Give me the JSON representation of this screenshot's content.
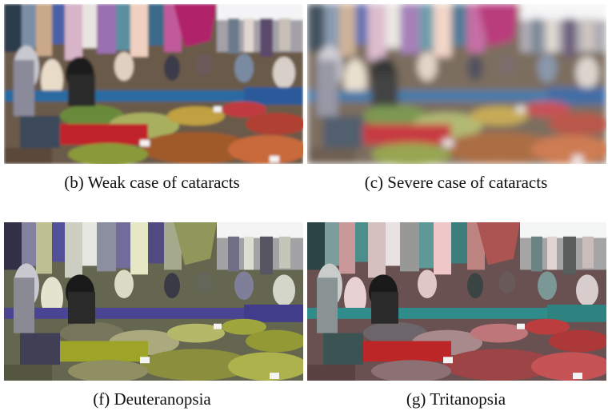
{
  "panels": [
    {
      "caption": "(b) Weak case of cataracts"
    },
    {
      "caption": "(c) Severe case of cataracts"
    },
    {
      "caption": "(f) Deuteranopsia"
    },
    {
      "caption": "(g) Tritanopsia"
    }
  ],
  "colors": {
    "background": "#ffffff",
    "caption_text": "#111111"
  }
}
